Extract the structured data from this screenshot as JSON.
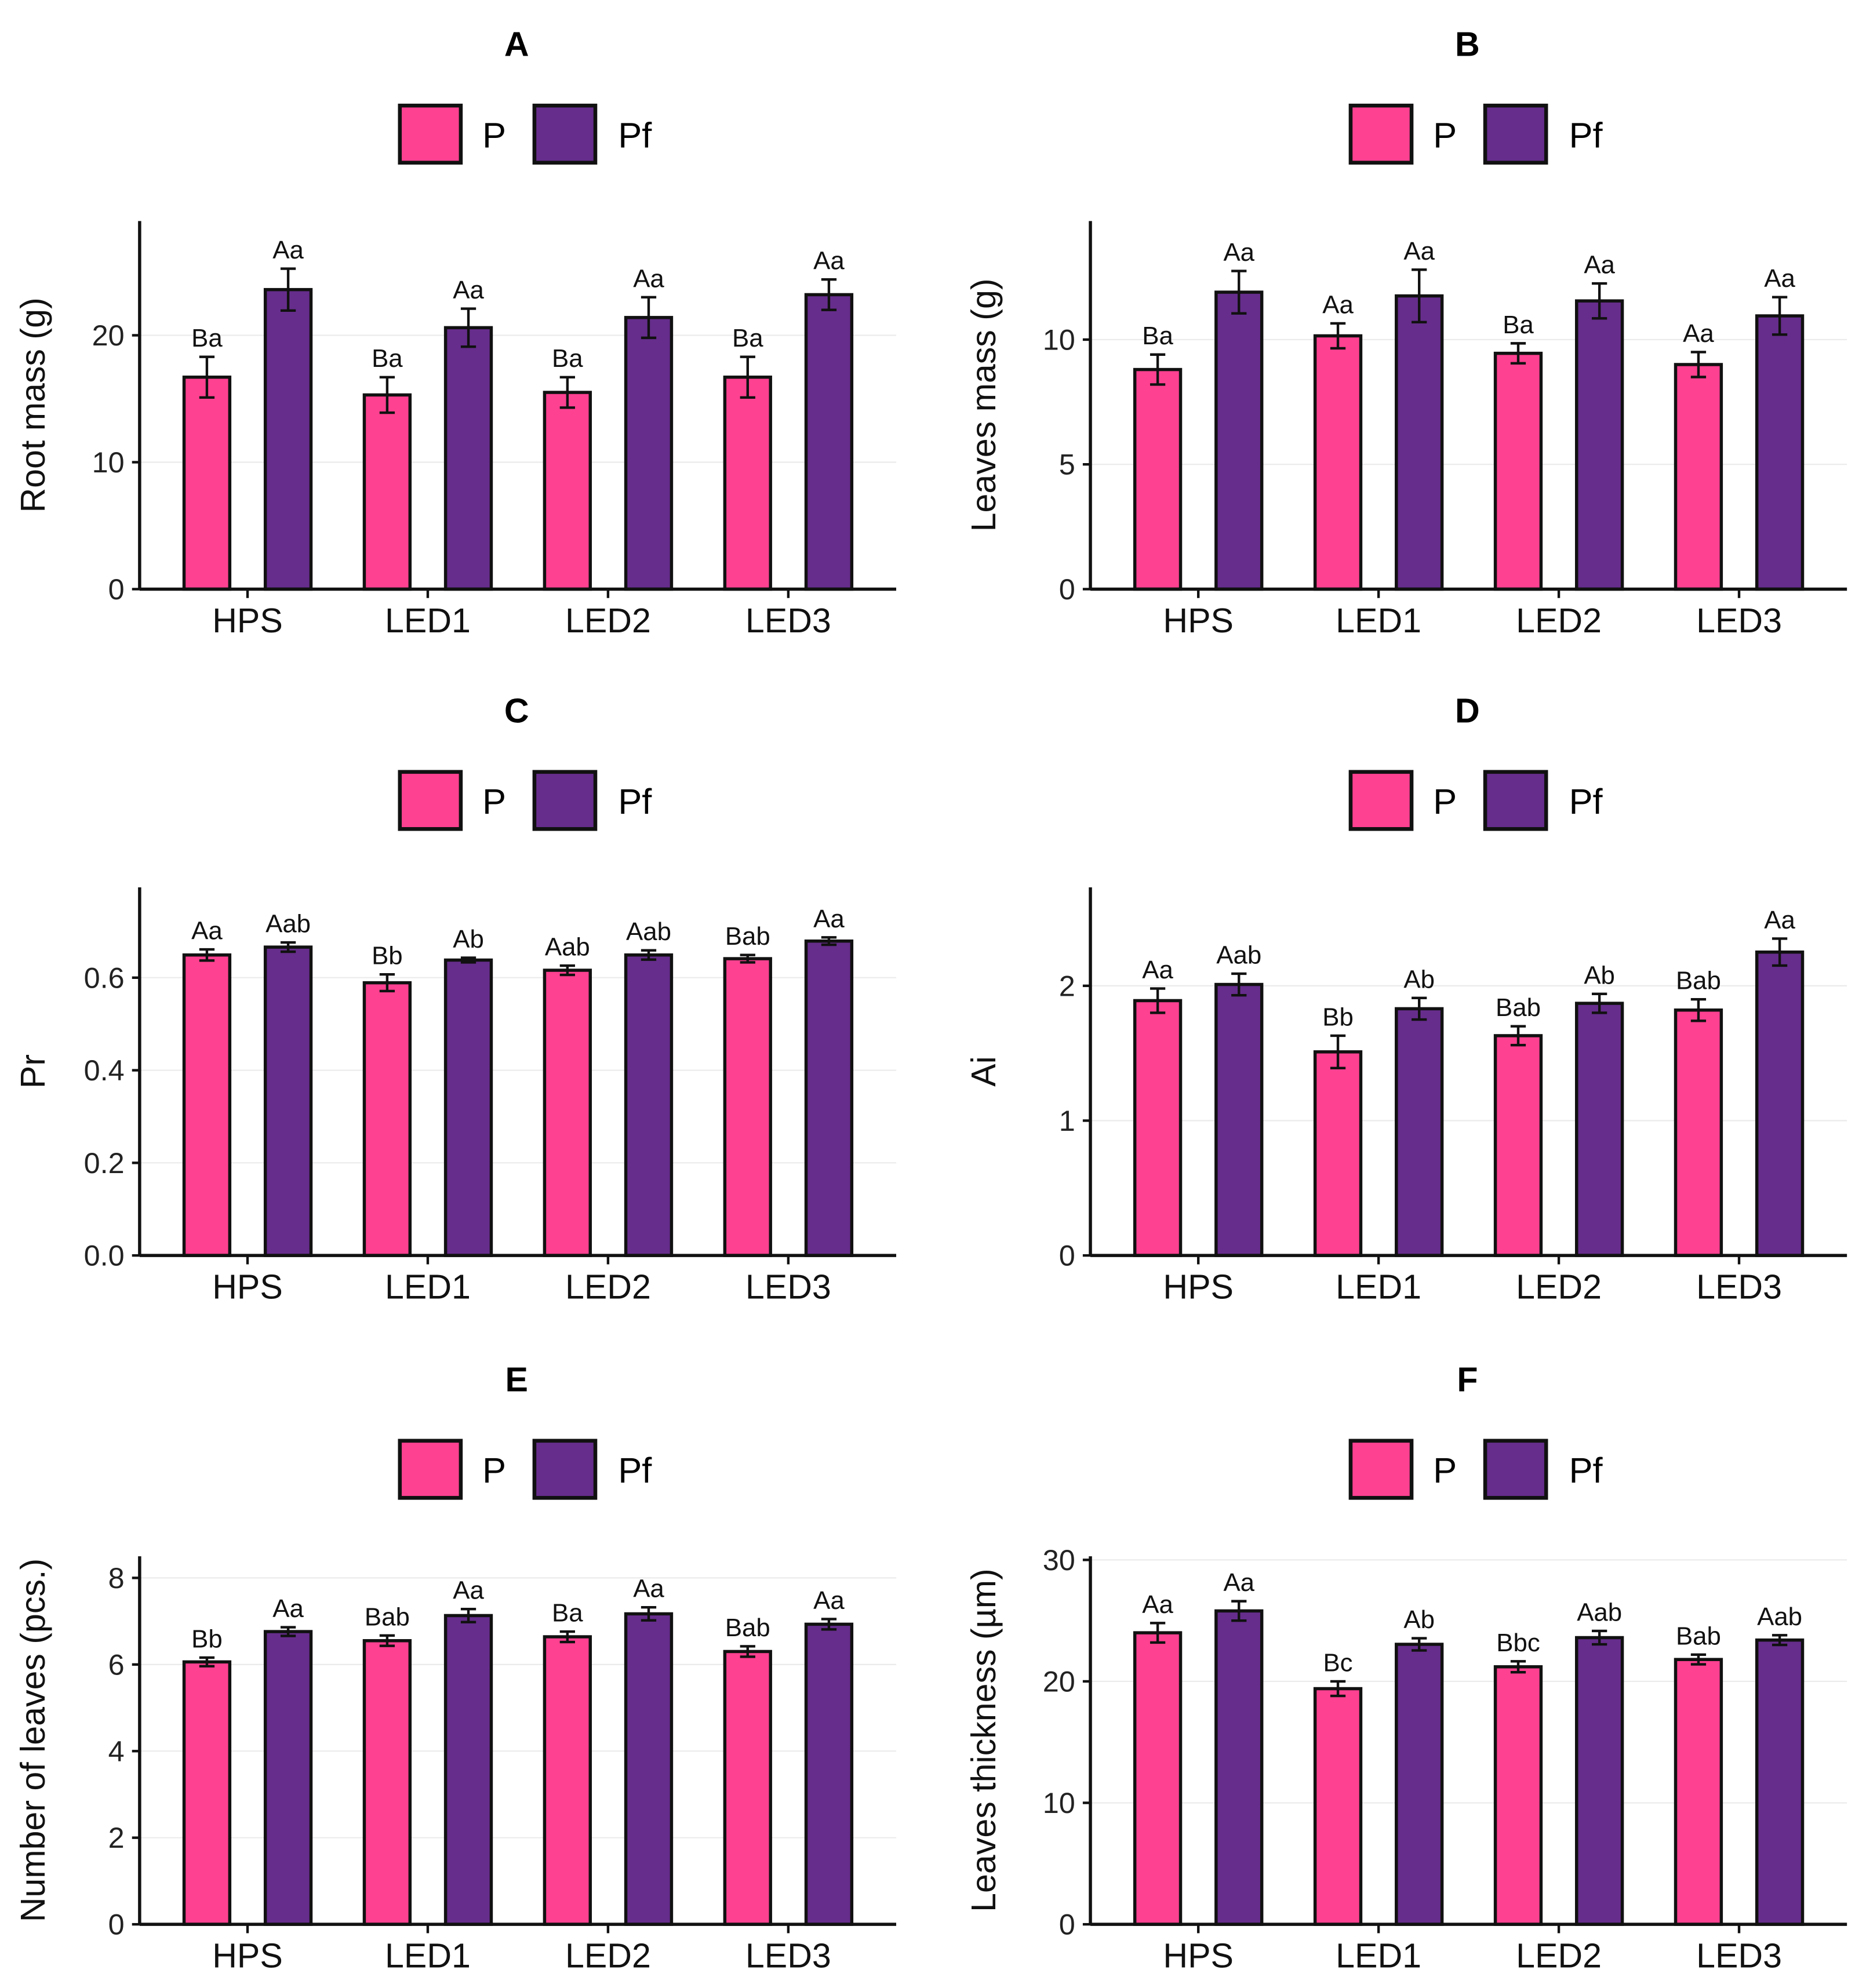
{
  "colors": {
    "P": "#FF4191",
    "Pf": "#662D8C",
    "grid": "#EBEBEB"
  },
  "chart_data": [
    {
      "type": "bar",
      "title": "A",
      "ylabel": "Root mass (g)",
      "ylim": [
        0,
        29
      ],
      "ticks": [
        0,
        10,
        20
      ],
      "tick_labels": [
        "0",
        "10",
        "20"
      ],
      "categories": [
        "HPS",
        "LED1",
        "LED2",
        "LED3"
      ],
      "legend": [
        "P",
        "Pf"
      ],
      "legend_position": "top",
      "series": [
        {
          "name": "P",
          "values": [
            16.7,
            15.3,
            15.5,
            16.7
          ],
          "errors": [
            1.6,
            1.4,
            1.2,
            1.6
          ],
          "labels": [
            "Ba",
            "Ba",
            "Ba",
            "Ba"
          ]
        },
        {
          "name": "Pf",
          "values": [
            23.6,
            20.6,
            21.4,
            23.2
          ],
          "errors": [
            1.65,
            1.5,
            1.6,
            1.2
          ],
          "labels": [
            "Aa",
            "Aa",
            "Aa",
            "Aa"
          ]
        }
      ]
    },
    {
      "type": "bar",
      "title": "B",
      "ylabel": "Leaves mass (g)",
      "ylim": [
        0,
        14.75
      ],
      "ticks": [
        0,
        5,
        10
      ],
      "tick_labels": [
        "0",
        "5",
        "10"
      ],
      "categories": [
        "HPS",
        "LED1",
        "LED2",
        "LED3"
      ],
      "legend": [
        "P",
        "Pf"
      ],
      "legend_position": "top",
      "series": [
        {
          "name": "P",
          "values": [
            8.8,
            10.15,
            9.45,
            9.0
          ],
          "errors": [
            0.6,
            0.5,
            0.4,
            0.5
          ],
          "labels": [
            "Ba",
            "Aa",
            "Ba",
            "Aa"
          ]
        },
        {
          "name": "Pf",
          "values": [
            11.9,
            11.75,
            11.55,
            10.95
          ],
          "errors": [
            0.85,
            1.05,
            0.7,
            0.75
          ],
          "labels": [
            "Aa",
            "Aa",
            "Aa",
            "Aa"
          ]
        }
      ]
    },
    {
      "type": "bar",
      "title": "C",
      "ylabel": "Pr",
      "ylim": [
        0,
        0.795
      ],
      "ticks": [
        0,
        0.2,
        0.4,
        0.6
      ],
      "tick_labels": [
        "0.0",
        "0.2",
        "0.4",
        "0.6"
      ],
      "categories": [
        "HPS",
        "LED1",
        "LED2",
        "LED3"
      ],
      "legend": [
        "P",
        "Pf"
      ],
      "legend_position": "top",
      "series": [
        {
          "name": "P",
          "values": [
            0.649,
            0.589,
            0.616,
            0.641
          ],
          "errors": [
            0.012,
            0.018,
            0.01,
            0.008
          ],
          "labels": [
            "Aa",
            "Bb",
            "Aab",
            "Bab"
          ]
        },
        {
          "name": "Pf",
          "values": [
            0.666,
            0.638,
            0.649,
            0.679
          ],
          "errors": [
            0.01,
            0.005,
            0.01,
            0.008
          ],
          "labels": [
            "Aab",
            "Ab",
            "Aab",
            "Aa"
          ]
        }
      ]
    },
    {
      "type": "bar",
      "title": "D",
      "ylabel": "Ai",
      "ylim": [
        0,
        2.73
      ],
      "ticks": [
        0,
        1,
        2
      ],
      "tick_labels": [
        "0",
        "1",
        "2"
      ],
      "categories": [
        "HPS",
        "LED1",
        "LED2",
        "LED3"
      ],
      "legend": [
        "P",
        "Pf"
      ],
      "legend_position": "top",
      "series": [
        {
          "name": "P",
          "values": [
            1.89,
            1.51,
            1.63,
            1.82
          ],
          "errors": [
            0.09,
            0.12,
            0.07,
            0.08
          ],
          "labels": [
            "Aa",
            "Bb",
            "Bab",
            "Bab"
          ]
        },
        {
          "name": "Pf",
          "values": [
            2.01,
            1.83,
            1.87,
            2.25
          ],
          "errors": [
            0.08,
            0.08,
            0.07,
            0.1
          ],
          "labels": [
            "Aab",
            "Ab",
            "Ab",
            "Aa"
          ]
        }
      ]
    },
    {
      "type": "bar",
      "title": "E",
      "ylabel": "Number of leaves (pcs.)",
      "ylim": [
        0,
        8.5
      ],
      "ticks": [
        0,
        2,
        4,
        6,
        8
      ],
      "tick_labels": [
        "0",
        "2",
        "4",
        "6",
        "8"
      ],
      "categories": [
        "HPS",
        "LED1",
        "LED2",
        "LED3"
      ],
      "legend": [
        "P",
        "Pf"
      ],
      "legend_position": "top",
      "series": [
        {
          "name": "P",
          "values": [
            6.06,
            6.55,
            6.64,
            6.3
          ],
          "errors": [
            0.1,
            0.12,
            0.12,
            0.12
          ],
          "labels": [
            "Bb",
            "Bab",
            "Ba",
            "Bab"
          ]
        },
        {
          "name": "Pf",
          "values": [
            6.76,
            7.13,
            7.17,
            6.93
          ],
          "errors": [
            0.1,
            0.15,
            0.15,
            0.12
          ],
          "labels": [
            "Aa",
            "Aa",
            "Aa",
            "Aa"
          ]
        }
      ]
    },
    {
      "type": "bar",
      "title": "F",
      "ylabel": "Leaves thickness (µm)",
      "ylim": [
        0,
        30.3
      ],
      "ticks": [
        0,
        10,
        20,
        30
      ],
      "tick_labels": [
        "0",
        "10",
        "20",
        "30"
      ],
      "categories": [
        "HPS",
        "LED1",
        "LED2",
        "LED3"
      ],
      "legend": [
        "P",
        "Pf"
      ],
      "legend_position": "top",
      "series": [
        {
          "name": "P",
          "values": [
            24.0,
            19.4,
            21.2,
            21.8
          ],
          "errors": [
            0.8,
            0.6,
            0.45,
            0.4
          ],
          "labels": [
            "Aa",
            "Bc",
            "Bbc",
            "Bab"
          ]
        },
        {
          "name": "Pf",
          "values": [
            25.8,
            23.05,
            23.6,
            23.4
          ],
          "errors": [
            0.8,
            0.5,
            0.55,
            0.4
          ],
          "labels": [
            "Aa",
            "Ab",
            "Aab",
            "Aab"
          ]
        }
      ]
    }
  ]
}
